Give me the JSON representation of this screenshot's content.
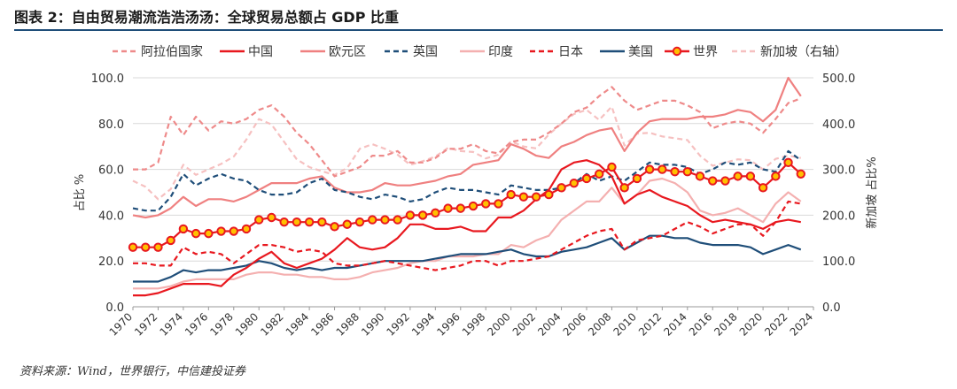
{
  "title": "图表 2：自由贸易潮流浩浩汤汤：全球贸易总额占 GDP 比重",
  "source": "资料来源：Wind，世界银行，中信建投证券",
  "chart_data": {
    "type": "line",
    "title": "图表 2：自由贸易潮流浩浩汤汤：全球贸易总额占 GDP 比重",
    "ylabel": "占比 %",
    "y2label": "新加坡 占比%",
    "ylim": [
      0,
      100
    ],
    "y2lim": [
      0,
      500
    ],
    "yticks": [
      "0.0",
      "20.0",
      "40.0",
      "60.0",
      "80.0",
      "100.0"
    ],
    "y2ticks": [
      "0.0",
      "100.0",
      "200.0",
      "300.0",
      "400.0",
      "500.0"
    ],
    "x": [
      1970,
      1971,
      1972,
      1973,
      1974,
      1975,
      1976,
      1977,
      1978,
      1979,
      1980,
      1981,
      1982,
      1983,
      1984,
      1985,
      1986,
      1987,
      1988,
      1989,
      1990,
      1991,
      1992,
      1993,
      1994,
      1995,
      1996,
      1997,
      1998,
      1999,
      2000,
      2001,
      2002,
      2003,
      2004,
      2005,
      2006,
      2007,
      2008,
      2009,
      2010,
      2011,
      2012,
      2013,
      2014,
      2015,
      2016,
      2017,
      2018,
      2019,
      2020,
      2021,
      2022,
      2023
    ],
    "xticks": [
      1970,
      1972,
      1974,
      1976,
      1978,
      1980,
      1982,
      1984,
      1986,
      1988,
      1990,
      1992,
      1994,
      1996,
      1998,
      2000,
      2002,
      2004,
      2006,
      2008,
      2010,
      2012,
      2014,
      2016,
      2018,
      2020,
      2022,
      2024
    ],
    "legend_position": "top",
    "grid": true,
    "series": [
      {
        "name": "阿拉伯国家",
        "color": "#ee8a8a",
        "dash": "dashed",
        "axis": "left",
        "values": [
          60,
          60,
          63,
          83,
          75,
          83,
          77,
          81,
          80,
          82,
          86,
          88,
          83,
          76,
          71,
          64,
          57,
          59,
          61,
          66,
          66,
          68,
          63,
          63,
          65,
          69,
          69,
          71,
          68,
          67,
          72,
          73,
          73,
          76,
          80,
          85,
          87,
          92,
          96,
          90,
          86,
          88,
          90,
          90,
          88,
          85,
          78,
          80,
          81,
          80,
          76,
          82,
          89,
          91
        ]
      },
      {
        "name": "中国",
        "color": "#e8181f",
        "dash": "solid",
        "axis": "left",
        "values": [
          5,
          5,
          6,
          8,
          10,
          10,
          10,
          9,
          14,
          17,
          21,
          24,
          19,
          17,
          19,
          21,
          25,
          30,
          26,
          25,
          26,
          30,
          36,
          36,
          34,
          34,
          35,
          33,
          33,
          39,
          39,
          42,
          47,
          51,
          60,
          63,
          64,
          62,
          57,
          45,
          49,
          51,
          48,
          46,
          44,
          40,
          37,
          38,
          37,
          36,
          34,
          37,
          38,
          37
        ]
      },
      {
        "name": "欧元区",
        "color": "#ef8080",
        "dash": "solid",
        "axis": "left",
        "values": [
          40,
          39,
          40,
          43,
          48,
          44,
          47,
          47,
          46,
          48,
          51,
          54,
          54,
          54,
          56,
          57,
          52,
          50,
          50,
          51,
          54,
          53,
          53,
          54,
          55,
          57,
          58,
          62,
          63,
          64,
          71,
          69,
          66,
          65,
          70,
          72,
          75,
          77,
          78,
          68,
          76,
          81,
          82,
          82,
          82,
          83,
          83,
          84,
          86,
          85,
          81,
          86,
          100,
          92
        ]
      },
      {
        "name": "英国",
        "color": "#1f4e79",
        "dash": "dashed",
        "axis": "left",
        "values": [
          43,
          42,
          42,
          48,
          58,
          53,
          56,
          58,
          56,
          55,
          51,
          49,
          49,
          50,
          54,
          56,
          51,
          50,
          48,
          47,
          49,
          48,
          46,
          47,
          50,
          52,
          51,
          51,
          50,
          49,
          53,
          52,
          51,
          51,
          52,
          54,
          58,
          55,
          57,
          55,
          59,
          63,
          62,
          62,
          61,
          58,
          60,
          63,
          62,
          63,
          60,
          59,
          68,
          64
        ]
      },
      {
        "name": "印度",
        "color": "#f4b0b0",
        "dash": "solid",
        "axis": "left",
        "values": [
          8,
          8,
          8,
          9,
          11,
          12,
          12,
          12,
          12,
          14,
          15,
          15,
          14,
          14,
          13,
          13,
          12,
          12,
          13,
          15,
          16,
          17,
          19,
          20,
          20,
          22,
          22,
          22,
          23,
          23,
          27,
          26,
          29,
          31,
          38,
          42,
          46,
          46,
          52,
          45,
          49,
          55,
          56,
          54,
          50,
          42,
          40,
          41,
          43,
          40,
          37,
          45,
          50,
          46
        ]
      },
      {
        "name": "日本",
        "color": "#e8181f",
        "dash": "dashed",
        "axis": "left",
        "values": [
          19,
          19,
          18,
          18,
          26,
          23,
          24,
          23,
          19,
          23,
          27,
          27,
          26,
          24,
          25,
          24,
          19,
          18,
          18,
          19,
          20,
          19,
          18,
          17,
          16,
          17,
          18,
          20,
          20,
          18,
          20,
          20,
          21,
          22,
          25,
          28,
          31,
          33,
          34,
          25,
          29,
          30,
          31,
          34,
          37,
          35,
          32,
          34,
          36,
          36,
          31,
          37,
          46,
          45
        ]
      },
      {
        "name": "美国",
        "color": "#1f4e79",
        "dash": "solid",
        "axis": "left",
        "values": [
          11,
          11,
          11,
          13,
          16,
          15,
          16,
          16,
          17,
          18,
          20,
          19,
          17,
          16,
          17,
          16,
          17,
          17,
          18,
          19,
          20,
          20,
          20,
          20,
          21,
          22,
          23,
          23,
          23,
          24,
          25,
          23,
          22,
          22,
          24,
          25,
          26,
          28,
          30,
          25,
          28,
          31,
          31,
          30,
          30,
          28,
          27,
          27,
          27,
          26,
          23,
          25,
          27,
          25
        ]
      },
      {
        "name": "世界",
        "color": "#e8181f",
        "dash": "marker",
        "axis": "left",
        "values": [
          26,
          26,
          26,
          29,
          34,
          32,
          32,
          33,
          33,
          34,
          38,
          39,
          37,
          37,
          37,
          37,
          35,
          36,
          37,
          38,
          38,
          38,
          40,
          40,
          41,
          43,
          43,
          44,
          45,
          45,
          49,
          48,
          48,
          49,
          52,
          54,
          56,
          58,
          61,
          52,
          56,
          60,
          60,
          59,
          59,
          57,
          55,
          55,
          57,
          57,
          52,
          57,
          63,
          58
        ]
      },
      {
        "name": "新加坡（右轴）",
        "color": "#f6c0c0",
        "dash": "dashed",
        "axis": "right",
        "values": [
          275,
          262,
          235,
          257,
          310,
          288,
          300,
          312,
          328,
          365,
          410,
          398,
          360,
          322,
          305,
          296,
          288,
          303,
          345,
          355,
          345,
          332,
          310,
          318,
          328,
          347,
          340,
          338,
          324,
          332,
          361,
          350,
          346,
          376,
          400,
          421,
          430,
          408,
          437,
          352,
          378,
          380,
          372,
          368,
          364,
          330,
          308,
          315,
          322,
          320,
          300,
          323,
          330,
          325
        ]
      }
    ]
  }
}
